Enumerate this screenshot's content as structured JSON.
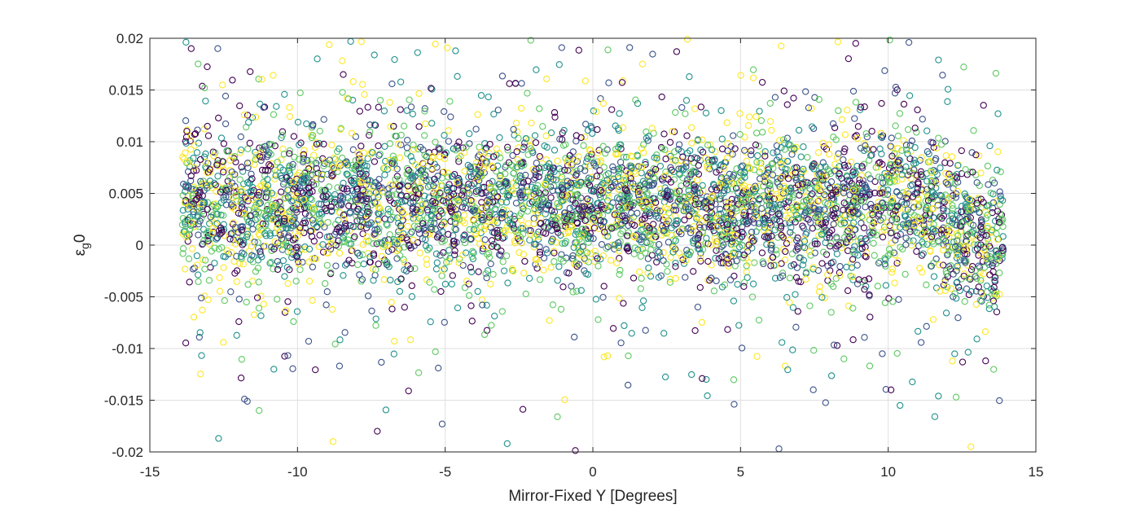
{
  "chart_data": {
    "type": "scatter",
    "xlabel": "Mirror-Fixed Y [Degrees]",
    "ylabel": "ε",
    "ylabel_subscript": "g",
    "ylabel_suffix": "0",
    "xlim": [
      -15,
      15
    ],
    "ylim": [
      -0.02,
      0.02
    ],
    "x_ticks": [
      "-15",
      "-10",
      "-5",
      "0",
      "5",
      "10",
      "15"
    ],
    "y_ticks": [
      "-0.02",
      "-0.015",
      "-0.01",
      "-0.005",
      "0",
      "0.005",
      "0.01",
      "0.015",
      "0.02"
    ],
    "grid": true,
    "marker": "open-circle",
    "colormap": "viridis",
    "colors": [
      "#440154",
      "#3b528b",
      "#21918c",
      "#5ec962",
      "#fde725"
    ],
    "point_count_estimate": 5000,
    "x_range_of_points": [
      -13.9,
      13.9
    ],
    "core_band": {
      "center": 0.004,
      "spread": 0.0045
    },
    "series": [
      {
        "x": [
          -13.7,
          -13.5,
          -13.0,
          -12.4,
          -12.0,
          -11.6,
          -11.0,
          -10.6,
          -10.2,
          -9.6,
          -9.0,
          -8.4,
          -7.8,
          -7.2,
          -6.6,
          -6.0,
          -5.4,
          -4.8,
          -4.2,
          -3.6,
          -3.0,
          -2.4,
          -1.8,
          -1.2,
          -0.6,
          0.0,
          0.6,
          1.2,
          1.8,
          2.4,
          3.0,
          3.6,
          4.2,
          4.8,
          5.4,
          6.0,
          6.6,
          7.2,
          7.8,
          8.4,
          9.0,
          9.6,
          10.2,
          10.8,
          11.4,
          12.0,
          12.6,
          13.2,
          13.8
        ],
        "y": [
          0.0035,
          0.0045,
          0.004,
          0.0042,
          0.0038,
          0.0043,
          0.0041,
          0.004,
          0.0039,
          0.0044,
          0.0042,
          0.0041,
          0.0043,
          0.004,
          0.0039,
          0.0042,
          0.0044,
          0.0041,
          0.004,
          0.0038,
          0.0042,
          0.0043,
          0.004,
          0.0041,
          0.0039,
          0.0042,
          0.0041,
          0.0043,
          0.004,
          0.0039,
          0.0041,
          0.0042,
          0.004,
          0.0038,
          0.0041,
          0.0043,
          0.004,
          0.0039,
          0.0042,
          0.004,
          0.0041,
          0.0039,
          0.004,
          0.0038,
          0.0036,
          0.0033,
          0.003,
          0.0026,
          0.0021
        ]
      }
    ],
    "outliers": [
      {
        "x": -13.6,
        "y": 0.019
      },
      {
        "x": -12.7,
        "y": 0.019
      },
      {
        "x": -8.2,
        "y": 0.0197
      },
      {
        "x": -2.1,
        "y": 0.0198
      },
      {
        "x": 3.2,
        "y": 0.0199
      },
      {
        "x": 8.9,
        "y": 0.0195
      },
      {
        "x": 10.7,
        "y": 0.0196
      },
      {
        "x": -10.8,
        "y": -0.012
      },
      {
        "x": -11.3,
        "y": -0.016
      },
      {
        "x": -8.8,
        "y": -0.019
      },
      {
        "x": -7.3,
        "y": -0.018
      },
      {
        "x": -5.1,
        "y": -0.0173
      },
      {
        "x": -2.9,
        "y": -0.0192
      },
      {
        "x": -1.2,
        "y": -0.0166
      },
      {
        "x": 0.5,
        "y": -0.0107
      },
      {
        "x": 3.7,
        "y": -0.0129
      },
      {
        "x": 6.3,
        "y": -0.0197
      },
      {
        "x": 10.4,
        "y": -0.0155
      },
      {
        "x": 12.3,
        "y": -0.0147
      },
      {
        "x": 12.8,
        "y": -0.0195
      },
      {
        "x": 13.3,
        "y": -0.0112
      },
      {
        "x": -11.7,
        "y": -0.0151
      },
      {
        "x": 11.7,
        "y": -0.0146
      },
      {
        "x": 8.5,
        "y": -0.011
      }
    ]
  }
}
